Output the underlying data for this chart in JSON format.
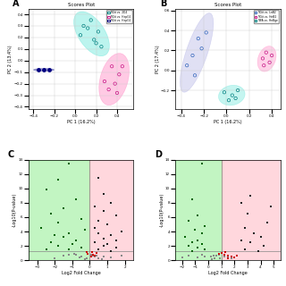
{
  "panel_A": {
    "title": "Scores Plot",
    "xlabel": "PC 1 (16.2%)",
    "ylabel": "PC 2 (13.4%)",
    "legend_labels": [
      "TIGit vs. 2D4",
      "TIGit vs. HepG2",
      "TIGit vs. HepG2"
    ],
    "group1_color": "#40e0d0",
    "group1_edge": "#008080",
    "group1_points": [
      [
        0.15,
        0.35
      ],
      [
        0.05,
        0.22
      ],
      [
        0.18,
        0.18
      ],
      [
        0.22,
        0.25
      ],
      [
        0.08,
        0.3
      ],
      [
        0.12,
        0.28
      ],
      [
        0.2,
        0.15
      ],
      [
        0.25,
        0.12
      ]
    ],
    "group2_color": "#ff69b4",
    "group2_edge": "#c71585",
    "group2_points": [
      [
        0.35,
        -0.05
      ],
      [
        0.42,
        -0.12
      ],
      [
        0.38,
        -0.2
      ],
      [
        0.32,
        -0.25
      ],
      [
        0.28,
        -0.18
      ],
      [
        0.45,
        -0.05
      ],
      [
        0.4,
        -0.28
      ]
    ],
    "group3_color": "#000080",
    "group3_points": [
      [
        -0.35,
        -0.08
      ],
      [
        -0.3,
        -0.08
      ],
      [
        -0.25,
        -0.08
      ]
    ]
  },
  "panel_B": {
    "title": "Scores Plot",
    "xlabel": "PC 1 (16.2%)",
    "ylabel": "PC 2 (17.4%)",
    "legend_labels": [
      "TIGit vs. LnB2",
      "TIGit vs. HnB2",
      "TIBA vs. HnBge"
    ],
    "group1_color": "#9999dd",
    "group1_edge": "#3366bb",
    "group1_points": [
      [
        -0.25,
        0.32
      ],
      [
        -0.18,
        0.38
      ],
      [
        -0.22,
        0.22
      ],
      [
        -0.3,
        0.15
      ],
      [
        -0.35,
        0.05
      ],
      [
        -0.28,
        -0.05
      ]
    ],
    "group2_color": "#ff69b4",
    "group2_edge": "#c71585",
    "group2_points": [
      [
        0.32,
        0.12
      ],
      [
        0.35,
        0.18
      ],
      [
        0.38,
        0.08
      ],
      [
        0.33,
        0.05
      ],
      [
        0.4,
        0.15
      ]
    ],
    "group3_color": "#40e0d0",
    "group3_edge": "#008080",
    "group3_points": [
      [
        -0.02,
        -0.22
      ],
      [
        0.05,
        -0.25
      ],
      [
        0.1,
        -0.2
      ],
      [
        0.08,
        -0.28
      ],
      [
        0.02,
        -0.3
      ]
    ]
  },
  "panel_C": {
    "xlabel": "Log2 Fold Change",
    "ylabel": "-Log10(P-value)",
    "bg_green": "#90ee90",
    "bg_pink": "#ffb6c1",
    "thresh_x": 0.0,
    "thresh_y": 1.3,
    "xlim": [
      -3.5,
      2.5
    ],
    "ylim": [
      0,
      14
    ],
    "points_green": [
      [
        -1.2,
        13.5
      ],
      [
        -1.8,
        11.2
      ],
      [
        -2.5,
        9.8
      ],
      [
        -0.8,
        8.5
      ],
      [
        -1.5,
        7.2
      ],
      [
        -2.2,
        6.5
      ],
      [
        -0.5,
        5.8
      ],
      [
        -1.8,
        5.2
      ],
      [
        -2.8,
        4.5
      ],
      [
        -0.3,
        4.2
      ],
      [
        -1.2,
        3.8
      ],
      [
        -2.0,
        3.5
      ],
      [
        -1.5,
        3.2
      ],
      [
        -0.8,
        2.8
      ],
      [
        -2.2,
        2.5
      ],
      [
        -1.0,
        2.2
      ],
      [
        -1.8,
        2.0
      ],
      [
        -0.5,
        1.8
      ],
      [
        -2.5,
        1.5
      ],
      [
        -1.2,
        1.5
      ]
    ],
    "points_dark": [
      [
        0.5,
        11.5
      ],
      [
        0.8,
        9.2
      ],
      [
        1.2,
        8.0
      ],
      [
        0.3,
        7.5
      ],
      [
        0.8,
        6.8
      ],
      [
        1.5,
        6.2
      ],
      [
        0.5,
        5.5
      ],
      [
        1.0,
        5.0
      ],
      [
        0.3,
        4.5
      ],
      [
        1.8,
        4.0
      ],
      [
        0.5,
        3.8
      ],
      [
        1.2,
        3.5
      ],
      [
        0.8,
        3.0
      ],
      [
        1.5,
        2.8
      ],
      [
        0.3,
        2.5
      ],
      [
        1.0,
        2.2
      ],
      [
        0.8,
        2.0
      ],
      [
        1.5,
        1.8
      ],
      [
        0.5,
        1.5
      ],
      [
        1.2,
        1.3
      ]
    ],
    "points_grey": [
      [
        -0.8,
        0.8
      ],
      [
        -0.5,
        0.5
      ],
      [
        -0.2,
        0.3
      ],
      [
        0.1,
        0.8
      ],
      [
        0.3,
        0.5
      ],
      [
        0.5,
        0.3
      ],
      [
        -1.2,
        0.8
      ],
      [
        0.8,
        0.5
      ],
      [
        -0.3,
        0.2
      ],
      [
        0.2,
        0.6
      ],
      [
        -0.6,
        0.4
      ],
      [
        0.4,
        0.7
      ],
      [
        -1.5,
        0.6
      ],
      [
        1.2,
        0.4
      ],
      [
        -2.0,
        0.3
      ],
      [
        1.8,
        0.6
      ],
      [
        -0.9,
        0.9
      ],
      [
        0.7,
        0.2
      ]
    ],
    "points_red": [
      [
        0.2,
        0.8
      ],
      [
        0.4,
        1.0
      ],
      [
        -0.1,
        0.9
      ],
      [
        0.15,
        1.1
      ],
      [
        0.3,
        0.7
      ],
      [
        -0.2,
        1.2
      ],
      [
        0.1,
        0.5
      ]
    ]
  },
  "panel_D": {
    "xlabel": "Log2 Fold Change",
    "ylabel": "-Log10(P-value)",
    "bg_green": "#90ee90",
    "bg_pink": "#ffb6c1",
    "thresh_x": 1.0,
    "thresh_y": 1.3,
    "xlim": [
      -2.5,
      5.5
    ],
    "ylim": [
      0,
      14
    ],
    "points_green": [
      [
        -0.5,
        13.5
      ],
      [
        -1.2,
        8.5
      ],
      [
        -0.8,
        6.2
      ],
      [
        -1.5,
        5.5
      ],
      [
        -0.3,
        4.8
      ],
      [
        -1.0,
        4.2
      ],
      [
        -0.5,
        3.8
      ],
      [
        -1.8,
        3.2
      ],
      [
        -0.8,
        2.8
      ],
      [
        -1.2,
        2.5
      ],
      [
        -0.5,
        2.2
      ],
      [
        -1.5,
        2.0
      ],
      [
        -0.8,
        1.8
      ],
      [
        -0.3,
        1.5
      ],
      [
        -1.2,
        1.3
      ]
    ],
    "points_dark": [
      [
        2.5,
        8.0
      ],
      [
        3.0,
        6.5
      ],
      [
        4.5,
        5.2
      ],
      [
        2.8,
        4.5
      ],
      [
        3.5,
        3.8
      ],
      [
        4.0,
        3.2
      ],
      [
        2.5,
        2.8
      ],
      [
        3.2,
        2.5
      ],
      [
        4.2,
        2.0
      ],
      [
        2.8,
        1.5
      ],
      [
        3.8,
        1.3
      ],
      [
        4.8,
        7.5
      ],
      [
        3.2,
        9.0
      ]
    ],
    "points_grey": [
      [
        -0.5,
        0.8
      ],
      [
        0.2,
        0.5
      ],
      [
        0.5,
        0.3
      ],
      [
        0.8,
        0.8
      ],
      [
        -0.3,
        0.5
      ],
      [
        0.6,
        0.6
      ],
      [
        1.2,
        0.5
      ],
      [
        -0.8,
        0.4
      ],
      [
        0.4,
        0.7
      ],
      [
        1.5,
        0.4
      ],
      [
        0.9,
        0.3
      ],
      [
        -1.5,
        0.6
      ],
      [
        1.8,
        0.3
      ],
      [
        -2.0,
        0.4
      ],
      [
        0.3,
        0.2
      ]
    ],
    "points_red": [
      [
        1.2,
        0.8
      ],
      [
        1.5,
        0.6
      ],
      [
        0.8,
        0.9
      ],
      [
        1.0,
        1.0
      ],
      [
        1.8,
        0.5
      ],
      [
        2.0,
        0.4
      ],
      [
        1.5,
        0.3
      ],
      [
        1.3,
        1.1
      ],
      [
        2.2,
        0.7
      ]
    ]
  }
}
